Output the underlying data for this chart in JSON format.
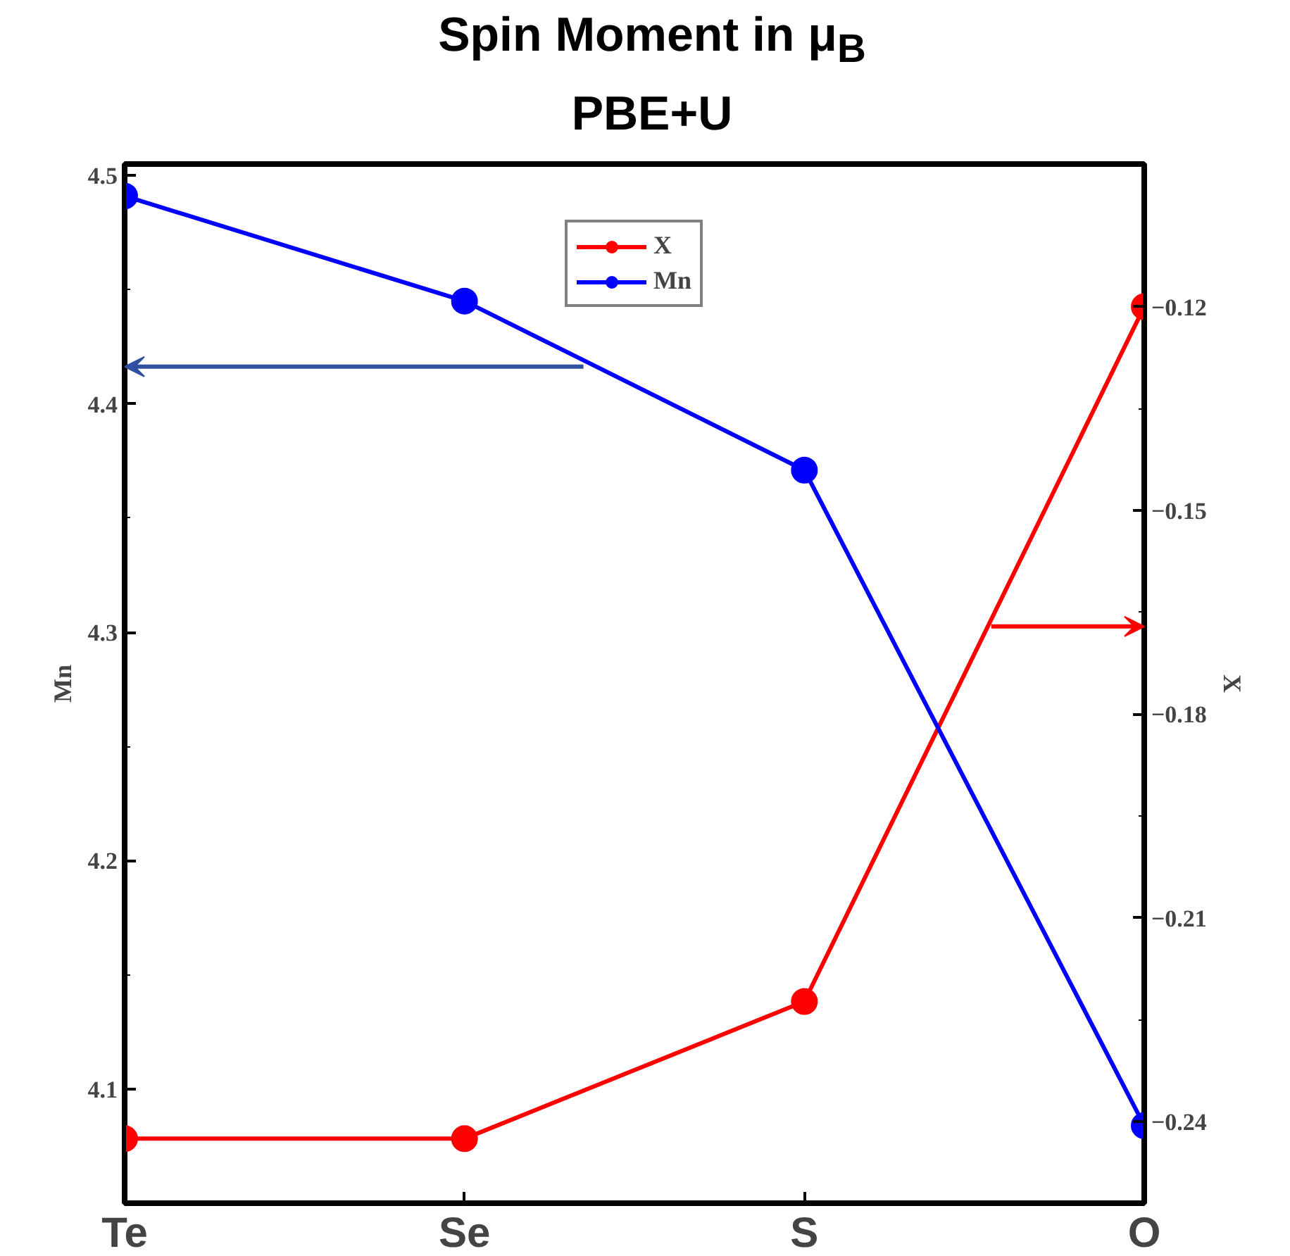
{
  "chart_data": {
    "type": "line",
    "title": "Spin Moment in μ$_{B}$",
    "subtitle": "PBE+U",
    "categories": [
      "Te",
      "Se",
      "S",
      "O"
    ],
    "ylabel": "Mn",
    "y2label": "X",
    "ylim": [
      4.05,
      4.505
    ],
    "yticks": [
      4.1,
      4.2,
      4.3,
      4.4,
      4.5
    ],
    "y2lim": [
      -0.252,
      -0.099
    ],
    "y2ticks": [
      -0.24,
      -0.21,
      -0.18,
      -0.15,
      -0.12
    ],
    "series": [
      {
        "name": "X",
        "color": "#ff0000",
        "axis": "y2",
        "values": [
          -0.2425,
          -0.2425,
          -0.2223,
          -0.12
        ]
      },
      {
        "name": "Mn",
        "color": "#0000ff",
        "values": [
          4.491,
          4.445,
          4.371,
          4.084
        ]
      }
    ],
    "marker": "circle",
    "line_style": "solid",
    "grid": false,
    "legend": "top"
  }
}
